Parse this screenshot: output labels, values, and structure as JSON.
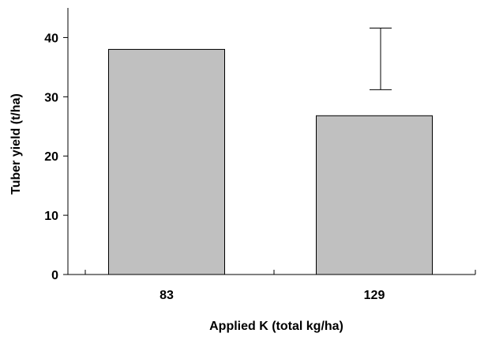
{
  "chart_data": {
    "type": "bar",
    "categories": [
      "83",
      "129"
    ],
    "values": [
      38,
      26.8
    ],
    "xlabel": "Applied K (total kg/ha)",
    "ylabel": "Tuber yield (t/ha)",
    "ylim": [
      0,
      45
    ],
    "yticks": [
      0,
      10,
      20,
      30,
      40
    ],
    "error_bar": {
      "category": "129",
      "low": 31.2,
      "high": 41.6
    },
    "colors": {
      "bar": "#c0c0c0",
      "outline": "#000000",
      "background": "#ffffff"
    },
    "grid": false,
    "legend": "none"
  }
}
